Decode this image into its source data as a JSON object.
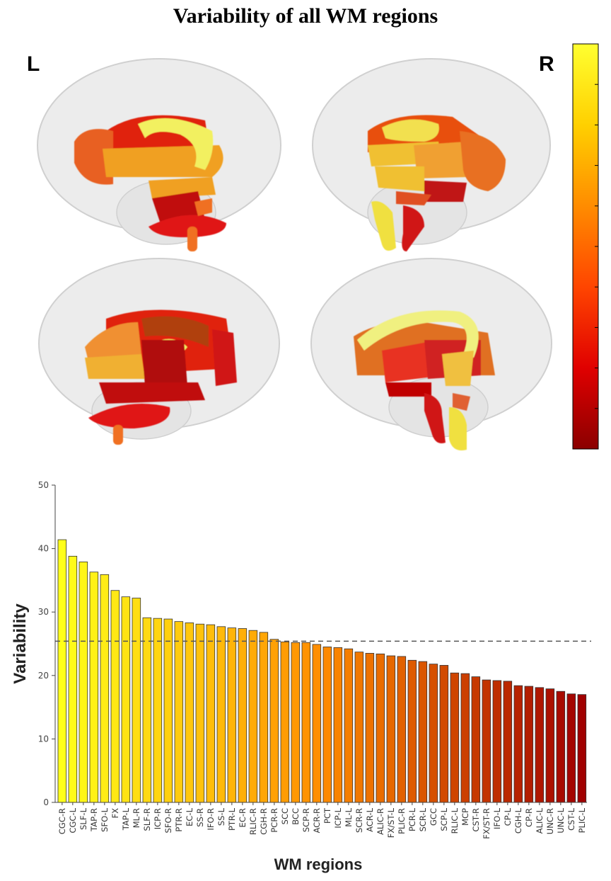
{
  "figure": {
    "title": "Variability of all WM regions"
  },
  "brain_panel": {
    "left_label": "L",
    "right_label": "R",
    "colorbar": {
      "colors": [
        "#8b0000",
        "#e00000",
        "#ff4500",
        "#ff8c00",
        "#ffd000",
        "#ffff30"
      ]
    }
  },
  "chart_data": {
    "type": "bar",
    "xlabel": "WM regions",
    "ylabel": "Variability",
    "ylim": [
      0,
      50
    ],
    "yticks": [
      0,
      10,
      20,
      30,
      40,
      50
    ],
    "reference_line": 25.4,
    "categories": [
      "CGC-R",
      "CGC-L",
      "SLF-L",
      "TAP-R",
      "SFO-L",
      "FX",
      "TAP-L",
      "ML-R",
      "SLF-R",
      "ICP-R",
      "SFO-R",
      "PTR-R",
      "EC-L",
      "SS-R",
      "IFO-R",
      "SS-L",
      "PTR-L",
      "EC-R",
      "RLIC-R",
      "CGH-R",
      "PCR-R",
      "SCC",
      "BCC",
      "SCP-R",
      "ACR-R",
      "PCT",
      "ICP-L",
      "ML-L",
      "SCR-R",
      "ACR-L",
      "ALIC-R",
      "FX/ST-L",
      "PLIC-R",
      "PCR-L",
      "SCR-L",
      "GCC",
      "SCP-L",
      "RLIC-L",
      "MCP",
      "CST-R",
      "FX/ST-R",
      "IFO-L",
      "CP-L",
      "CGH-L",
      "CP-R",
      "ALIC-L",
      "UNC-R",
      "UNC-L",
      "CST-L",
      "PLIC-L"
    ],
    "values": [
      41.4,
      38.8,
      37.9,
      36.3,
      35.9,
      33.4,
      32.4,
      32.2,
      29.1,
      29.0,
      28.9,
      28.5,
      28.3,
      28.1,
      28.0,
      27.7,
      27.5,
      27.4,
      27.1,
      26.8,
      25.7,
      25.3,
      25.2,
      25.2,
      24.9,
      24.5,
      24.4,
      24.2,
      23.7,
      23.5,
      23.4,
      23.1,
      23.0,
      22.4,
      22.2,
      21.8,
      21.6,
      20.4,
      20.3,
      19.8,
      19.3,
      19.2,
      19.1,
      18.4,
      18.3,
      18.1,
      17.9,
      17.5,
      17.1,
      17.0
    ],
    "color_start": "#ffff1a",
    "color_mid": "#ff8c00",
    "color_end": "#a00000"
  }
}
